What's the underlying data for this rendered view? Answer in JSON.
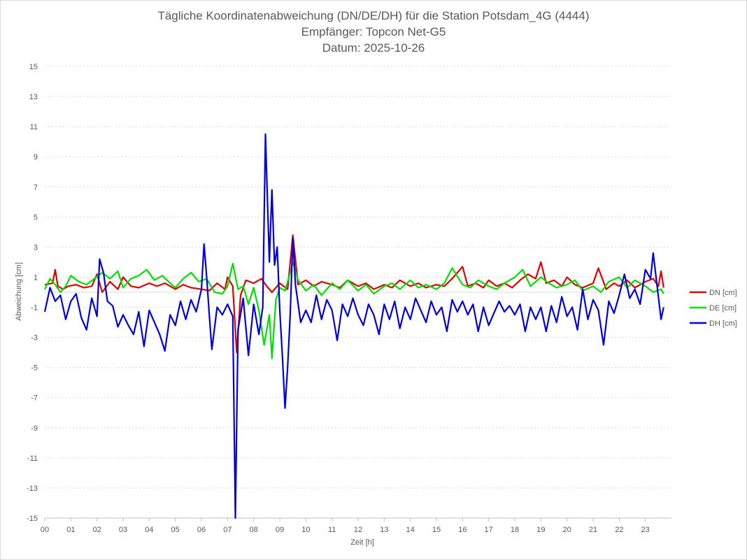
{
  "chart_data": {
    "type": "line",
    "title": "Tägliche Koordinatenabweichung (DN/DE/DH) für die Station Potsdam_4G (4444)",
    "subtitle1": "Empfänger: Topcon Net-G5",
    "subtitle2": "Datum: 2025-10-26",
    "xlabel": "Zeit [h]",
    "ylabel": "Abweichung [cm]",
    "xlim": [
      0,
      24
    ],
    "ylim": [
      -15,
      15
    ],
    "yticks": [
      "15",
      "13",
      "11",
      "9",
      "7",
      "5",
      "3",
      "1",
      "-1",
      "-3",
      "-5",
      "-7",
      "-9",
      "-11",
      "-13",
      "-15"
    ],
    "xticks": [
      "00",
      "01",
      "02",
      "03",
      "04",
      "05",
      "06",
      "07",
      "08",
      "09",
      "10",
      "11",
      "12",
      "13",
      "14",
      "15",
      "16",
      "17",
      "18",
      "19",
      "20",
      "21",
      "22",
      "23"
    ],
    "grid": true,
    "legend_position": "right",
    "series": [
      {
        "name": "DN [cm]",
        "color": "#e00000",
        "points": [
          [
            0.0,
            0.5
          ],
          [
            0.3,
            0.6
          ],
          [
            0.4,
            1.5
          ],
          [
            0.5,
            0.4
          ],
          [
            0.7,
            0.2
          ],
          [
            0.9,
            0.4
          ],
          [
            1.2,
            0.5
          ],
          [
            1.5,
            0.3
          ],
          [
            1.8,
            0.4
          ],
          [
            2.0,
            1.2
          ],
          [
            2.2,
            0.0
          ],
          [
            2.5,
            0.7
          ],
          [
            2.8,
            0.2
          ],
          [
            3.0,
            1.0
          ],
          [
            3.3,
            0.4
          ],
          [
            3.6,
            0.3
          ],
          [
            4.0,
            0.6
          ],
          [
            4.3,
            0.4
          ],
          [
            4.6,
            0.6
          ],
          [
            5.0,
            0.2
          ],
          [
            5.3,
            0.5
          ],
          [
            5.6,
            0.3
          ],
          [
            6.0,
            0.2
          ],
          [
            6.3,
            0.1
          ],
          [
            6.6,
            0.6
          ],
          [
            6.9,
            0.2
          ],
          [
            7.0,
            1.0
          ],
          [
            7.2,
            0.4
          ],
          [
            7.35,
            -4.0
          ],
          [
            7.5,
            -0.2
          ],
          [
            7.7,
            0.8
          ],
          [
            8.0,
            0.6
          ],
          [
            8.3,
            0.9
          ],
          [
            8.5,
            0.4
          ],
          [
            8.7,
            0.0
          ],
          [
            9.0,
            0.6
          ],
          [
            9.3,
            0.2
          ],
          [
            9.5,
            3.8
          ],
          [
            9.7,
            0.5
          ],
          [
            10.0,
            0.8
          ],
          [
            10.3,
            0.4
          ],
          [
            10.6,
            0.7
          ],
          [
            11.0,
            0.5
          ],
          [
            11.3,
            0.3
          ],
          [
            11.6,
            0.8
          ],
          [
            12.0,
            0.4
          ],
          [
            12.3,
            0.6
          ],
          [
            12.6,
            0.2
          ],
          [
            13.0,
            0.5
          ],
          [
            13.3,
            0.3
          ],
          [
            13.6,
            0.8
          ],
          [
            14.0,
            0.4
          ],
          [
            14.3,
            0.6
          ],
          [
            14.6,
            0.3
          ],
          [
            15.0,
            0.5
          ],
          [
            15.3,
            0.4
          ],
          [
            15.6,
            0.9
          ],
          [
            16.0,
            1.7
          ],
          [
            16.2,
            0.4
          ],
          [
            16.5,
            0.6
          ],
          [
            16.8,
            0.3
          ],
          [
            17.0,
            0.8
          ],
          [
            17.3,
            0.4
          ],
          [
            17.6,
            0.6
          ],
          [
            17.9,
            0.3
          ],
          [
            18.2,
            0.8
          ],
          [
            18.5,
            1.2
          ],
          [
            18.8,
            0.9
          ],
          [
            19.0,
            2.0
          ],
          [
            19.2,
            0.6
          ],
          [
            19.5,
            0.8
          ],
          [
            19.8,
            0.4
          ],
          [
            20.0,
            1.0
          ],
          [
            20.3,
            0.5
          ],
          [
            20.6,
            0.3
          ],
          [
            21.0,
            0.6
          ],
          [
            21.2,
            1.6
          ],
          [
            21.5,
            0.2
          ],
          [
            21.8,
            0.6
          ],
          [
            22.0,
            0.4
          ],
          [
            22.3,
            0.8
          ],
          [
            22.6,
            0.3
          ],
          [
            23.0,
            0.7
          ],
          [
            23.3,
            0.9
          ],
          [
            23.5,
            0.4
          ],
          [
            23.6,
            1.4
          ],
          [
            23.7,
            0.3
          ]
        ]
      },
      {
        "name": "DE [cm]",
        "color": "#00e000",
        "points": [
          [
            0.0,
            0.2
          ],
          [
            0.2,
            0.9
          ],
          [
            0.4,
            0.5
          ],
          [
            0.6,
            0.0
          ],
          [
            0.8,
            0.4
          ],
          [
            1.0,
            1.1
          ],
          [
            1.3,
            0.7
          ],
          [
            1.6,
            0.5
          ],
          [
            1.9,
            0.9
          ],
          [
            2.2,
            1.3
          ],
          [
            2.5,
            0.9
          ],
          [
            2.8,
            1.4
          ],
          [
            3.0,
            0.3
          ],
          [
            3.3,
            0.9
          ],
          [
            3.6,
            1.1
          ],
          [
            3.9,
            1.5
          ],
          [
            4.2,
            0.8
          ],
          [
            4.5,
            1.1
          ],
          [
            4.8,
            0.6
          ],
          [
            5.0,
            0.3
          ],
          [
            5.3,
            0.9
          ],
          [
            5.6,
            1.3
          ],
          [
            5.9,
            0.7
          ],
          [
            6.2,
            0.9
          ],
          [
            6.5,
            0.0
          ],
          [
            6.8,
            -0.1
          ],
          [
            7.0,
            0.4
          ],
          [
            7.2,
            1.9
          ],
          [
            7.4,
            0.2
          ],
          [
            7.6,
            0.4
          ],
          [
            7.8,
            -0.8
          ],
          [
            8.0,
            0.3
          ],
          [
            8.2,
            -1.2
          ],
          [
            8.4,
            -3.5
          ],
          [
            8.6,
            -1.5
          ],
          [
            8.7,
            -4.4
          ],
          [
            8.85,
            -0.5
          ],
          [
            9.0,
            0.3
          ],
          [
            9.2,
            0.1
          ],
          [
            9.4,
            1.3
          ],
          [
            9.5,
            2.0
          ],
          [
            9.7,
            0.8
          ],
          [
            10.0,
            0.1
          ],
          [
            10.3,
            0.5
          ],
          [
            10.6,
            -0.2
          ],
          [
            11.0,
            0.6
          ],
          [
            11.3,
            0.2
          ],
          [
            11.6,
            0.8
          ],
          [
            12.0,
            0.1
          ],
          [
            12.3,
            0.5
          ],
          [
            12.6,
            -0.1
          ],
          [
            13.0,
            0.4
          ],
          [
            13.3,
            0.6
          ],
          [
            13.6,
            0.2
          ],
          [
            14.0,
            0.8
          ],
          [
            14.3,
            0.3
          ],
          [
            14.6,
            0.5
          ],
          [
            15.0,
            0.2
          ],
          [
            15.3,
            0.6
          ],
          [
            15.6,
            1.6
          ],
          [
            16.0,
            0.5
          ],
          [
            16.3,
            0.3
          ],
          [
            16.6,
            0.8
          ],
          [
            17.0,
            0.4
          ],
          [
            17.3,
            0.2
          ],
          [
            17.6,
            0.6
          ],
          [
            18.0,
            1.0
          ],
          [
            18.3,
            1.5
          ],
          [
            18.6,
            0.4
          ],
          [
            19.0,
            1.0
          ],
          [
            19.3,
            0.6
          ],
          [
            19.6,
            0.3
          ],
          [
            20.0,
            0.5
          ],
          [
            20.3,
            0.8
          ],
          [
            20.6,
            0.1
          ],
          [
            21.0,
            0.4
          ],
          [
            21.3,
            0.0
          ],
          [
            21.6,
            0.7
          ],
          [
            22.0,
            1.0
          ],
          [
            22.3,
            0.3
          ],
          [
            22.6,
            0.8
          ],
          [
            23.0,
            0.4
          ],
          [
            23.3,
            0.0
          ],
          [
            23.6,
            0.2
          ],
          [
            23.7,
            -0.1
          ]
        ]
      },
      {
        "name": "DH [cm]",
        "color": "#0000dd",
        "points": [
          [
            0.0,
            -1.3
          ],
          [
            0.2,
            0.3
          ],
          [
            0.4,
            -0.6
          ],
          [
            0.6,
            -0.2
          ],
          [
            0.8,
            -1.8
          ],
          [
            1.0,
            -0.6
          ],
          [
            1.2,
            -0.1
          ],
          [
            1.4,
            -1.7
          ],
          [
            1.6,
            -2.5
          ],
          [
            1.8,
            -0.4
          ],
          [
            2.0,
            -1.6
          ],
          [
            2.1,
            2.2
          ],
          [
            2.25,
            1.3
          ],
          [
            2.4,
            -0.6
          ],
          [
            2.6,
            -0.9
          ],
          [
            2.8,
            -2.3
          ],
          [
            3.0,
            -1.5
          ],
          [
            3.2,
            -2.2
          ],
          [
            3.4,
            -2.8
          ],
          [
            3.6,
            -1.3
          ],
          [
            3.8,
            -3.6
          ],
          [
            4.0,
            -1.2
          ],
          [
            4.2,
            -2.0
          ],
          [
            4.4,
            -2.8
          ],
          [
            4.6,
            -3.9
          ],
          [
            4.8,
            -1.5
          ],
          [
            5.0,
            -2.2
          ],
          [
            5.2,
            -0.6
          ],
          [
            5.4,
            -1.8
          ],
          [
            5.6,
            -0.5
          ],
          [
            5.8,
            -1.3
          ],
          [
            6.0,
            0.2
          ],
          [
            6.1,
            3.2
          ],
          [
            6.2,
            1.0
          ],
          [
            6.3,
            -1.5
          ],
          [
            6.4,
            -3.8
          ],
          [
            6.6,
            -1.0
          ],
          [
            6.8,
            -1.5
          ],
          [
            7.0,
            -0.8
          ],
          [
            7.2,
            -1.6
          ],
          [
            7.3,
            -15.0
          ],
          [
            7.4,
            -2.5
          ],
          [
            7.6,
            -0.4
          ],
          [
            7.8,
            -4.2
          ],
          [
            8.0,
            -0.8
          ],
          [
            8.2,
            -2.8
          ],
          [
            8.35,
            -1.0
          ],
          [
            8.45,
            10.5
          ],
          [
            8.6,
            2.0
          ],
          [
            8.7,
            6.8
          ],
          [
            8.8,
            1.8
          ],
          [
            8.9,
            3.0
          ],
          [
            9.0,
            -1.2
          ],
          [
            9.1,
            -4.2
          ],
          [
            9.2,
            -7.7
          ],
          [
            9.3,
            -5.0
          ],
          [
            9.4,
            -1.5
          ],
          [
            9.5,
            3.6
          ],
          [
            9.6,
            0.5
          ],
          [
            9.8,
            -2.0
          ],
          [
            10.0,
            -1.2
          ],
          [
            10.2,
            -2.0
          ],
          [
            10.4,
            -0.2
          ],
          [
            10.6,
            -1.8
          ],
          [
            10.8,
            -0.5
          ],
          [
            11.0,
            -1.2
          ],
          [
            11.2,
            -3.2
          ],
          [
            11.4,
            -0.8
          ],
          [
            11.6,
            -1.6
          ],
          [
            11.8,
            -0.4
          ],
          [
            12.0,
            -1.5
          ],
          [
            12.2,
            -2.2
          ],
          [
            12.4,
            -0.8
          ],
          [
            12.6,
            -1.5
          ],
          [
            12.8,
            -2.8
          ],
          [
            13.0,
            -0.8
          ],
          [
            13.2,
            -1.8
          ],
          [
            13.4,
            -0.6
          ],
          [
            13.6,
            -2.4
          ],
          [
            13.8,
            -1.0
          ],
          [
            14.0,
            -1.8
          ],
          [
            14.2,
            -0.4
          ],
          [
            14.4,
            -1.2
          ],
          [
            14.6,
            -2.0
          ],
          [
            14.8,
            -0.6
          ],
          [
            15.0,
            -1.5
          ],
          [
            15.2,
            -1.0
          ],
          [
            15.4,
            -2.6
          ],
          [
            15.6,
            -0.5
          ],
          [
            15.8,
            -1.3
          ],
          [
            16.0,
            -0.6
          ],
          [
            16.2,
            -1.5
          ],
          [
            16.4,
            -0.8
          ],
          [
            16.6,
            -2.6
          ],
          [
            16.8,
            -1.0
          ],
          [
            17.0,
            -2.2
          ],
          [
            17.2,
            -1.4
          ],
          [
            17.4,
            -0.6
          ],
          [
            17.6,
            -1.3
          ],
          [
            17.8,
            -0.9
          ],
          [
            18.0,
            -1.5
          ],
          [
            18.2,
            -0.8
          ],
          [
            18.4,
            -2.6
          ],
          [
            18.6,
            -1.0
          ],
          [
            18.8,
            -1.8
          ],
          [
            19.0,
            -1.0
          ],
          [
            19.2,
            -2.6
          ],
          [
            19.4,
            -0.9
          ],
          [
            19.6,
            -2.0
          ],
          [
            19.8,
            -0.3
          ],
          [
            20.0,
            -1.6
          ],
          [
            20.2,
            -1.0
          ],
          [
            20.4,
            -2.5
          ],
          [
            20.6,
            0.2
          ],
          [
            20.8,
            -1.8
          ],
          [
            21.0,
            -0.5
          ],
          [
            21.2,
            -1.2
          ],
          [
            21.4,
            -3.5
          ],
          [
            21.6,
            -0.6
          ],
          [
            21.8,
            -1.4
          ],
          [
            22.0,
            -0.2
          ],
          [
            22.2,
            1.2
          ],
          [
            22.4,
            -0.4
          ],
          [
            22.6,
            0.2
          ],
          [
            22.8,
            -0.8
          ],
          [
            23.0,
            1.5
          ],
          [
            23.2,
            0.9
          ],
          [
            23.3,
            2.6
          ],
          [
            23.45,
            0.4
          ],
          [
            23.6,
            -1.8
          ],
          [
            23.7,
            -1.0
          ]
        ]
      }
    ]
  }
}
